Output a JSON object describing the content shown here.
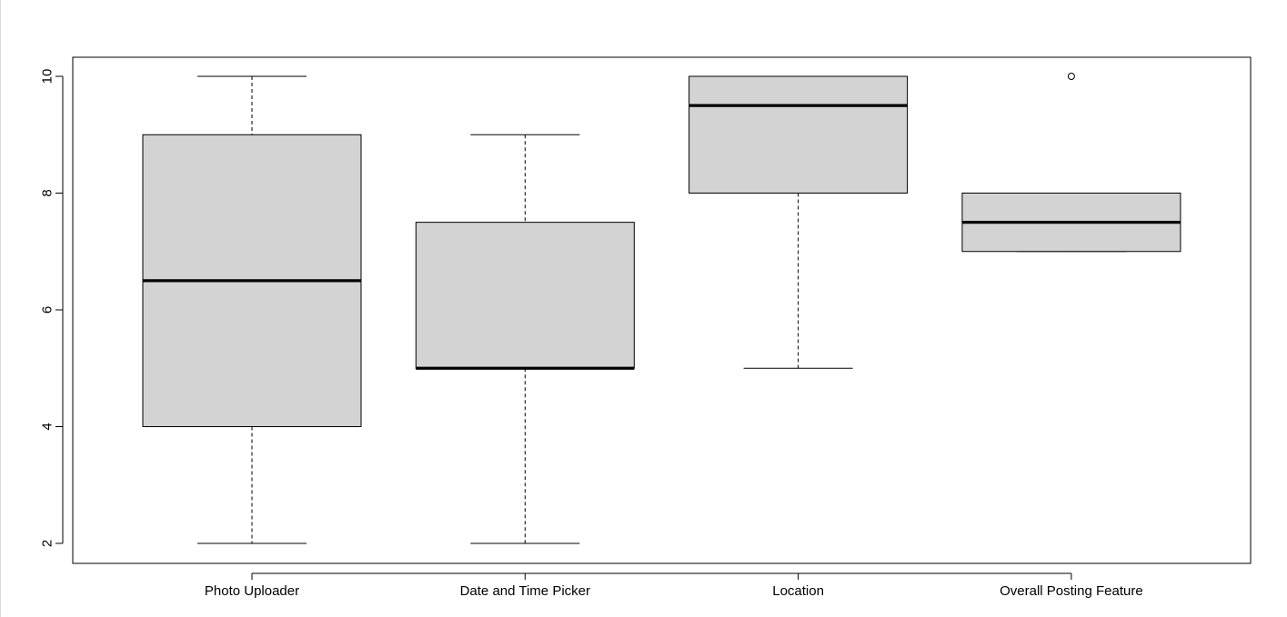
{
  "chart_data": {
    "type": "box",
    "title": "",
    "xlabel": "",
    "ylabel": "",
    "ylim": [
      1.7,
      10.35
    ],
    "yticks": [
      2,
      4,
      6,
      8,
      10
    ],
    "grid": false,
    "legend": "none",
    "box_fill": "#d3d3d3",
    "categories": [
      "Photo Uploader",
      "Date and Time Picker",
      "Location",
      "Overall Posting Feature"
    ],
    "boxes": [
      {
        "whisker_low": 2,
        "q1": 4,
        "median": 6.5,
        "q3": 9,
        "whisker_high": 10,
        "outliers": []
      },
      {
        "whisker_low": 2,
        "q1": 5,
        "median": 5,
        "q3": 7.5,
        "whisker_high": 9,
        "outliers": []
      },
      {
        "whisker_low": 5,
        "q1": 8,
        "median": 9.5,
        "q3": 10,
        "whisker_high": 10,
        "outliers": []
      },
      {
        "whisker_low": 7,
        "q1": 7,
        "median": 7.5,
        "q3": 8,
        "whisker_high": 8,
        "outliers": [
          10
        ]
      }
    ]
  }
}
